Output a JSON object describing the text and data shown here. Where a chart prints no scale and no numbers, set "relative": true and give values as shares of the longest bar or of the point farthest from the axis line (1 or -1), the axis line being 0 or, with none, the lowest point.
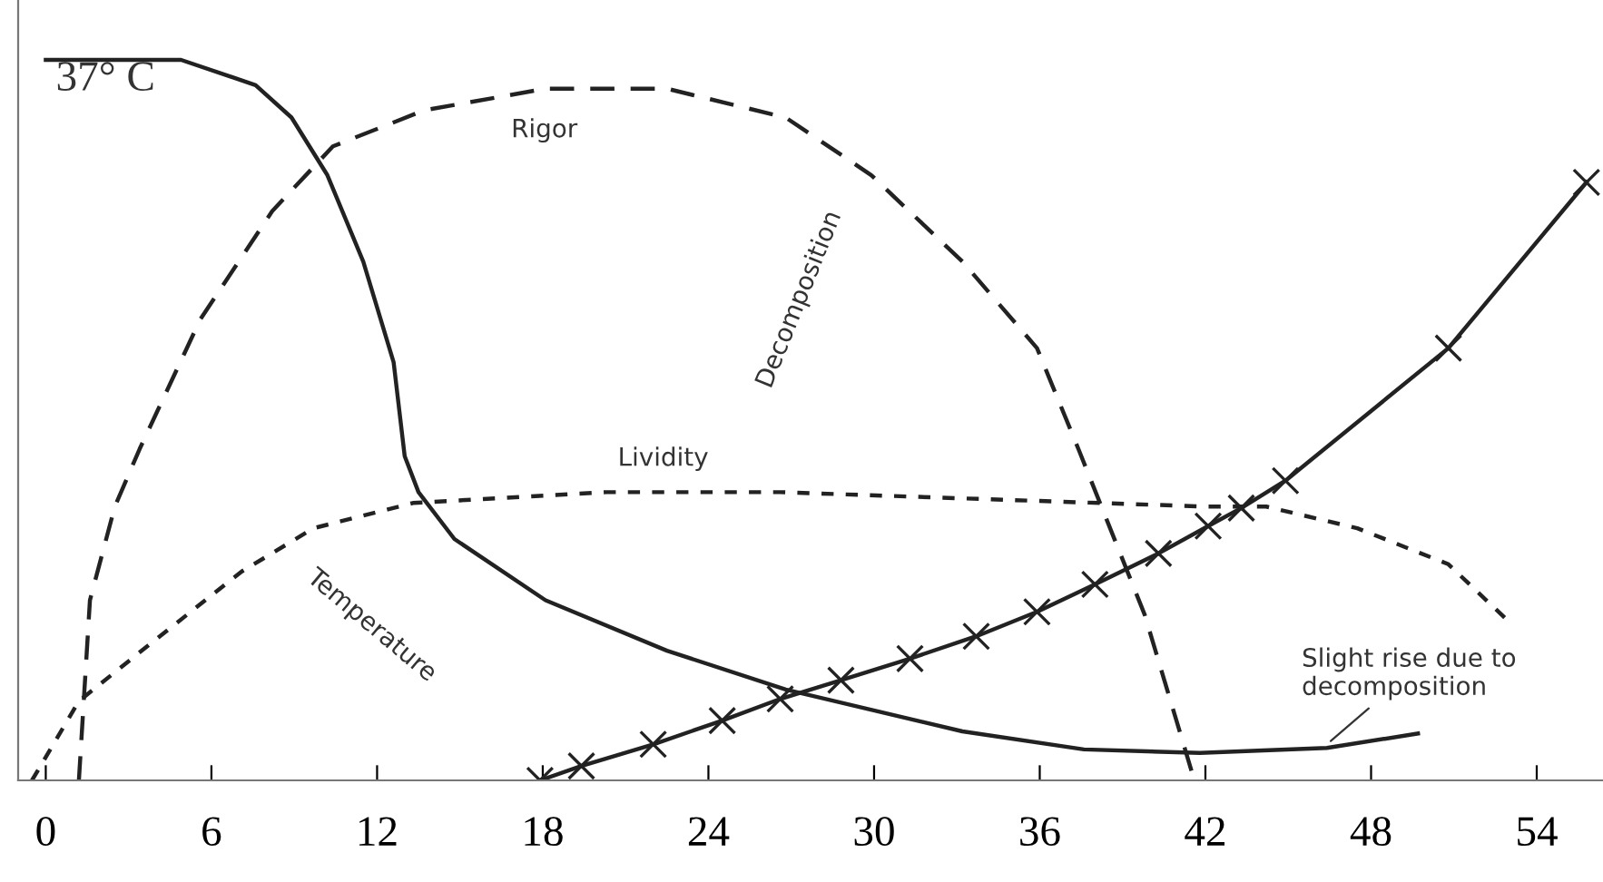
{
  "chart_data": {
    "type": "line",
    "relative": true,
    "xlim": [
      -1,
      56.4
    ],
    "xticks": [
      0,
      6,
      12,
      18,
      24,
      30,
      36,
      42,
      48,
      54
    ],
    "grid": false,
    "legend": false,
    "series": [
      {
        "color": "#222222",
        "line_style": "solid",
        "marker": "none",
        "x": [
          0,
          4.9,
          7.6,
          8.9,
          10.2,
          11.5,
          12.6,
          13.0,
          13.5,
          14.8,
          18.1,
          22.5,
          26.8,
          33.2,
          37.6,
          41.8,
          46.4,
          49.7
        ],
        "values": [
          1.0,
          1.0,
          0.965,
          0.92,
          0.84,
          0.72,
          0.58,
          0.45,
          0.4,
          0.335,
          0.25,
          0.18,
          0.126,
          0.068,
          0.043,
          0.038,
          0.045,
          0.065
        ]
      },
      {
        "color": "#222222",
        "line_style": "dashed",
        "marker": "none",
        "x": [
          1.2,
          1.6,
          2.5,
          3.4,
          5.6,
          8.2,
          10.4,
          13.7,
          18.1,
          22.5,
          26.8,
          29.9,
          33.2,
          35.9,
          37.4,
          39.8,
          41.6
        ],
        "values": [
          0,
          0.25,
          0.38,
          0.46,
          0.64,
          0.79,
          0.88,
          0.93,
          0.96,
          0.96,
          0.92,
          0.84,
          0.72,
          0.6,
          0.46,
          0.23,
          0
        ]
      },
      {
        "color": "#222222",
        "line_style": "dotted",
        "marker": "none",
        "x": [
          -0.5,
          1.2,
          3.8,
          7.1,
          9.7,
          13.3,
          20.3,
          26.6,
          42.0,
          44.2,
          47.5,
          50.8,
          53.0
        ],
        "values": [
          0,
          0.11,
          0.19,
          0.29,
          0.35,
          0.385,
          0.4,
          0.4,
          0.38,
          0.38,
          0.35,
          0.3,
          0.22
        ]
      },
      {
        "color": "#222222",
        "line_style": "solid",
        "marker": "cross",
        "x": [
          17.9,
          19.4,
          22.0,
          24.5,
          26.6,
          28.8,
          31.3,
          33.7,
          35.9,
          38.0,
          40.3,
          42.1,
          43.3,
          44.9,
          50.8,
          55.8
        ],
        "values": [
          0,
          0.02,
          0.05,
          0.083,
          0.113,
          0.139,
          0.169,
          0.2,
          0.234,
          0.272,
          0.315,
          0.353,
          0.378,
          0.416,
          0.6,
          0.83
        ]
      }
    ],
    "annotations": [
      {
        "text": "37° C",
        "x": 0,
        "y": 1.0
      },
      "Rigor",
      "Decomposition",
      "Lividity",
      "Temperature",
      {
        "text": "Slight rise due to\ndecomposition",
        "x": 46.4,
        "y": 0.05
      }
    ]
  }
}
